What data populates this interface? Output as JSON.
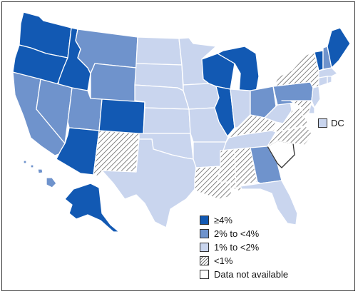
{
  "colors": {
    "ge4": "#1259b3",
    "2to4": "#6f93cc",
    "1to2": "#c9d5ee",
    "lt1": "hatched",
    "na": "#ffffff"
  },
  "legend": {
    "items": [
      {
        "key": "ge4",
        "label": "≥4%"
      },
      {
        "key": "2to4",
        "label": "2% to <4%"
      },
      {
        "key": "1to2",
        "label": "1% to <2%"
      },
      {
        "key": "lt1",
        "label": "<1%"
      },
      {
        "key": "na",
        "label": "Data not available"
      }
    ]
  },
  "dc": {
    "label": "DC",
    "category": "1to2"
  },
  "states": {
    "WA": "ge4",
    "OR": "ge4",
    "ID": "ge4",
    "MT": "2to4",
    "WY": "2to4",
    "CA": "2to4",
    "NV": "2to4",
    "UT": "2to4",
    "CO": "ge4",
    "AZ": "ge4",
    "NM": "lt1",
    "ND": "1to2",
    "SD": "1to2",
    "NE": "1to2",
    "KS": "1to2",
    "OK": "1to2",
    "TX": "1to2",
    "MN": "1to2",
    "IA": "1to2",
    "MO": "1to2",
    "AR": "1to2",
    "LA": "lt1",
    "WI": "ge4",
    "IL": "ge4",
    "MI": "ge4",
    "IN": "1to2",
    "OH": "2to4",
    "KY": "lt1",
    "TN": "1to2",
    "MS": "lt1",
    "AL": "lt1",
    "GA": "2to4",
    "FL": "1to2",
    "SC": "na",
    "NC": "lt1",
    "VA": "lt1",
    "WV": "1to2",
    "PA": "2to4",
    "NY": "lt1",
    "VT": "ge4",
    "NH": "2to4",
    "ME": "ge4",
    "MA": "1to2",
    "CT": "1to2",
    "RI": "1to2",
    "NJ": "1to2",
    "DE": "1to2",
    "MD": "lt1",
    "AK": "ge4",
    "HI": "2to4"
  }
}
